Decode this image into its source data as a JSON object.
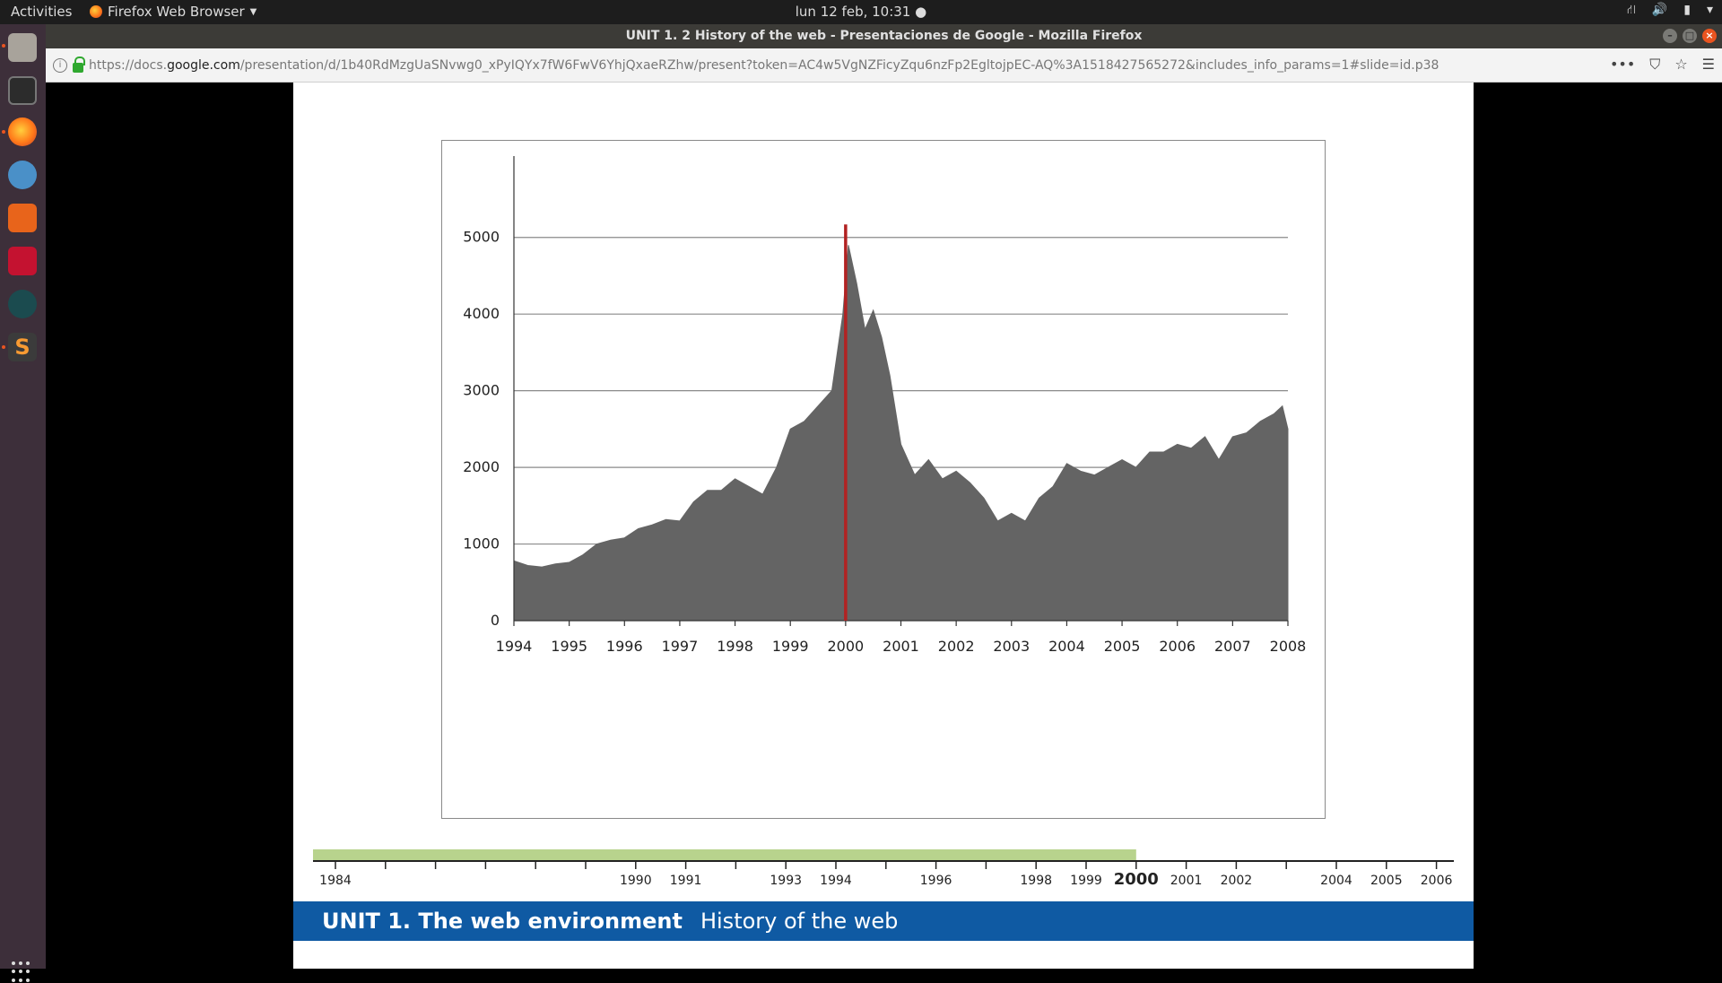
{
  "topbar": {
    "activities": "Activities",
    "app_name": "Firefox Web Browser",
    "clock": "lun 12 feb, 10:31"
  },
  "window": {
    "title": "UNIT 1. 2 History of the web - Presentaciones de Google - Mozilla Firefox"
  },
  "urlbar": {
    "prefix": "https://docs.",
    "host": "google.com",
    "path": "/presentation/d/1b40RdMzgUaSNvwg0_xPyIQYx7fW6FwV6YhjQxaeRZhw/present?token=AC4w5VgNZFicyZqu6nzFp2EgltojpEC-AQ%3A1518427565272&includes_info_params=1#slide=id.p38"
  },
  "launcher": {
    "icons": [
      "files-icon",
      "terminal-icon",
      "firefox-icon",
      "wine-icon",
      "software-center-icon",
      "mendeley-icon",
      "gitkraken-icon",
      "sublime-text-icon"
    ]
  },
  "chart_data": {
    "type": "area",
    "x_ticks": [
      1994,
      1995,
      1996,
      1997,
      1998,
      1999,
      2000,
      2001,
      2002,
      2003,
      2004,
      2005,
      2006,
      2007,
      2008
    ],
    "y_ticks": [
      0,
      1000,
      2000,
      3000,
      4000,
      5000
    ],
    "xlim": [
      1994,
      2008
    ],
    "ylim": [
      0,
      5500
    ],
    "grid": true,
    "marker_line": {
      "x": 2000.0,
      "color": "#b22222"
    },
    "series": [
      {
        "color": "#646464",
        "x": [
          1994.0,
          1994.25,
          1994.5,
          1994.75,
          1995.0,
          1995.25,
          1995.5,
          1995.75,
          1996.0,
          1996.25,
          1996.5,
          1996.75,
          1997.0,
          1997.25,
          1997.5,
          1997.75,
          1998.0,
          1998.25,
          1998.5,
          1998.75,
          1999.0,
          1999.25,
          1999.5,
          1999.75,
          1999.95,
          2000.05,
          2000.2,
          2000.35,
          2000.5,
          2000.65,
          2000.8,
          2001.0,
          2001.25,
          2001.5,
          2001.75,
          2002.0,
          2002.25,
          2002.5,
          2002.75,
          2003.0,
          2003.25,
          2003.5,
          2003.75,
          2004.0,
          2004.25,
          2004.5,
          2004.75,
          2005.0,
          2005.25,
          2005.5,
          2005.75,
          2006.0,
          2006.25,
          2006.5,
          2006.75,
          2007.0,
          2007.25,
          2007.5,
          2007.75,
          2007.9,
          2008.0
        ],
        "values": [
          780,
          720,
          700,
          740,
          760,
          860,
          1000,
          1050,
          1080,
          1200,
          1250,
          1320,
          1300,
          1550,
          1700,
          1700,
          1850,
          1750,
          1650,
          2000,
          2500,
          2600,
          2800,
          3000,
          4000,
          4900,
          4400,
          3800,
          4050,
          3700,
          3200,
          2300,
          1900,
          2100,
          1850,
          1950,
          1800,
          1600,
          1300,
          1400,
          1300,
          1600,
          1750,
          2050,
          1950,
          1900,
          2000,
          2100,
          2000,
          2200,
          2200,
          2300,
          2250,
          2400,
          2100,
          2400,
          2450,
          2600,
          2700,
          2800,
          2500
        ]
      }
    ]
  },
  "timeline": {
    "labels": [
      "1984",
      "1990",
      "1991",
      "1993",
      "1994",
      "1996",
      "1998",
      "1999",
      "2000",
      "2001",
      "2002",
      "2004",
      "2005",
      "2006"
    ],
    "highlight_until": "2000",
    "highlight_color": "#b8d38d"
  },
  "footer": {
    "unit": "UNIT 1. The web environment",
    "topic": "History of the web"
  }
}
